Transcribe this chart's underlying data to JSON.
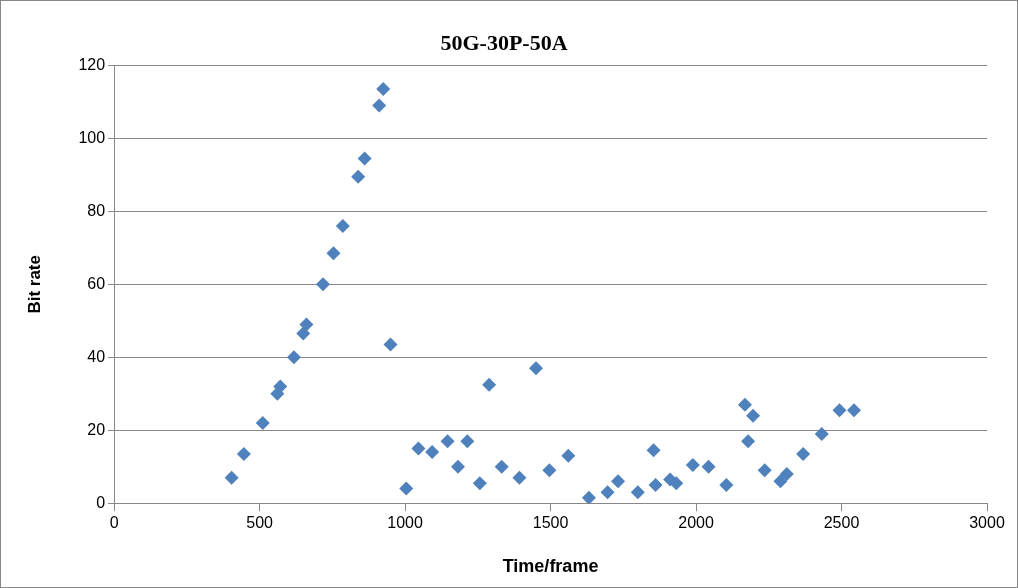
{
  "chart_data": {
    "type": "scatter",
    "title": "50G-30P-50A",
    "xlabel": "Time/frame",
    "ylabel": "Bit rate",
    "x": [
      404,
      446,
      511,
      561,
      571,
      618,
      650,
      661,
      718,
      754,
      786,
      839,
      861,
      911,
      925,
      950,
      1004,
      1046,
      1093,
      1146,
      1182,
      1214,
      1257,
      1289,
      1332,
      1393,
      1450,
      1496,
      1561,
      1632,
      1696,
      1732,
      1800,
      1854,
      1861,
      1911,
      1932,
      1989,
      2043,
      2104,
      2168,
      2179,
      2196,
      2236,
      2290,
      2312,
      2368,
      2432,
      2493,
      2543
    ],
    "series": [
      {
        "color": "#4f81bd",
        "values": [
          7,
          13.5,
          22,
          30,
          32,
          40,
          46.5,
          49,
          60,
          68.5,
          76,
          89.5,
          94.5,
          109,
          113.5,
          43.5,
          4,
          15,
          14,
          17,
          10,
          17,
          5.5,
          32.5,
          10,
          7,
          37,
          9,
          13,
          1.5,
          3,
          6,
          3,
          14.5,
          5,
          6.5,
          5.5,
          10.5,
          10,
          5,
          27,
          17,
          24,
          9,
          6,
          8,
          13.5,
          19,
          25.5,
          25.5
        ]
      }
    ],
    "xlim": [
      0,
      3000
    ],
    "xticks": [
      0,
      500,
      1000,
      1500,
      2000,
      2500,
      3000
    ],
    "ylim": [
      0,
      120
    ],
    "yticks": [
      0,
      20,
      40,
      60,
      80,
      100,
      120
    ],
    "grid": "y",
    "legend": false,
    "marker": "diamond"
  }
}
